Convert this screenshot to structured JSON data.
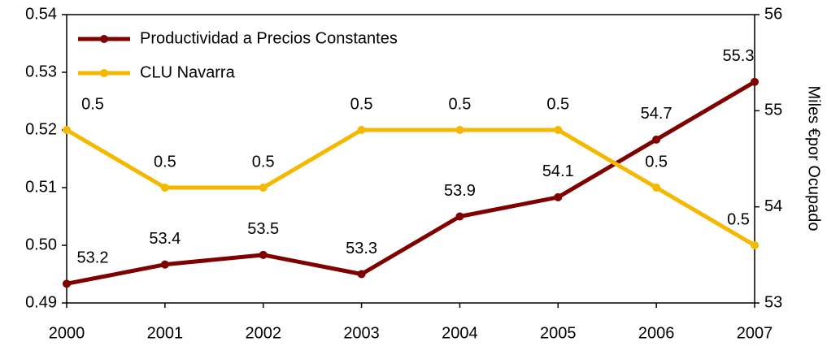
{
  "chart_data": {
    "type": "line",
    "categories": [
      "2000",
      "2001",
      "2002",
      "2003",
      "2004",
      "2005",
      "2006",
      "2007"
    ],
    "series": [
      {
        "name": "Productividad a Precios Constantes",
        "color": "#800000",
        "axis": "y2",
        "values": [
          53.2,
          53.4,
          53.5,
          53.3,
          53.9,
          54.1,
          54.7,
          55.3
        ]
      },
      {
        "name": "CLU Navarra",
        "color": "#f5b800",
        "values": [
          0.52,
          0.51,
          0.51,
          0.52,
          0.52,
          0.52,
          0.51,
          0.5
        ],
        "value_labels": [
          "0.5",
          "0.5",
          "0.5",
          "0.5",
          "0.5",
          "0.5",
          "0.5",
          "0.5"
        ]
      }
    ],
    "ylim": [
      0.49,
      0.54
    ],
    "yticks": [
      0.49,
      {
        "value": 0.5,
        "label": "0.50"
      },
      0.51,
      0.52,
      0.53,
      0.54
    ],
    "y2lim": [
      53,
      56
    ],
    "y2ticks": [
      53,
      54,
      55,
      56
    ],
    "y2label": "Miles €por Ocupado",
    "legend": "upper left"
  }
}
